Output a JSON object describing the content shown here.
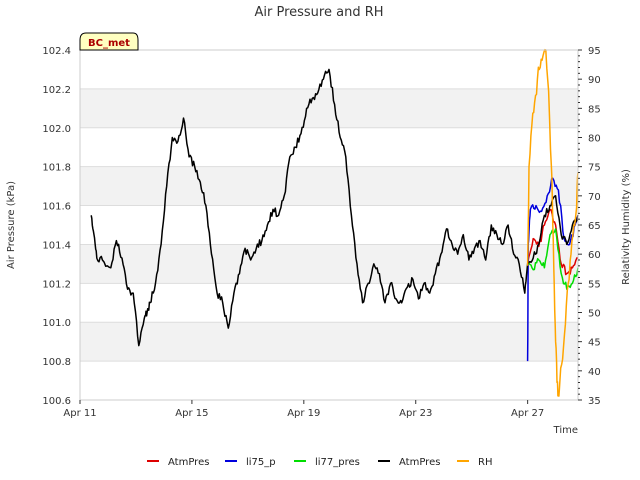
{
  "chart_data": {
    "type": "line",
    "title": "Air Pressure and RH",
    "xlabel": "Time",
    "ylabel": "Air Pressure (kPa)",
    "y2label": "Relativity Humidity (%)",
    "badge": "BC_met",
    "x_ticks": [
      {
        "day": 11,
        "label": "Apr 11"
      },
      {
        "day": 15,
        "label": "Apr 15"
      },
      {
        "day": 19,
        "label": "Apr 19"
      },
      {
        "day": 23,
        "label": "Apr 23"
      },
      {
        "day": 27,
        "label": "Apr 27"
      }
    ],
    "xlim": [
      11,
      28.8
    ],
    "ylim": [
      100.6,
      102.4
    ],
    "y_ticks": [
      {
        "v": 100.6,
        "label": "100.6"
      },
      {
        "v": 100.8,
        "label": "100.8"
      },
      {
        "v": 101.0,
        "label": "101.0"
      },
      {
        "v": 101.2,
        "label": "101.2"
      },
      {
        "v": 101.4,
        "label": "101.4"
      },
      {
        "v": 101.6,
        "label": "101.6"
      },
      {
        "v": 101.8,
        "label": "101.8"
      },
      {
        "v": 102.0,
        "label": "102.0"
      },
      {
        "v": 102.2,
        "label": "102.2"
      },
      {
        "v": 102.4,
        "label": "102.4"
      }
    ],
    "y2lim": [
      35,
      95
    ],
    "y2_ticks": [
      {
        "v": 35,
        "label": "35"
      },
      {
        "v": 40,
        "label": "40"
      },
      {
        "v": 45,
        "label": "45"
      },
      {
        "v": 50,
        "label": "50"
      },
      {
        "v": 55,
        "label": "55"
      },
      {
        "v": 60,
        "label": "60"
      },
      {
        "v": 65,
        "label": "65"
      },
      {
        "v": 70,
        "label": "70"
      },
      {
        "v": 75,
        "label": "75"
      },
      {
        "v": 80,
        "label": "80"
      },
      {
        "v": 85,
        "label": "85"
      },
      {
        "v": 90,
        "label": "90"
      },
      {
        "v": 95,
        "label": "95"
      }
    ],
    "series": [
      {
        "name": "AtmPres",
        "color": "#dd0000",
        "axis": "left",
        "x": [
          27.0,
          27.2,
          27.4,
          27.6,
          27.8,
          28.0,
          28.2,
          28.4,
          28.6,
          28.8
        ],
        "y": [
          101.3,
          101.43,
          101.39,
          101.5,
          101.58,
          101.5,
          101.3,
          101.25,
          101.28,
          101.33
        ]
      },
      {
        "name": "li75_p",
        "color": "#0000dd",
        "axis": "left",
        "x": [
          27.0,
          27.02,
          27.1,
          27.3,
          27.5,
          27.7,
          27.9,
          28.1,
          28.3,
          28.5,
          28.7,
          28.8
        ],
        "y": [
          100.8,
          101.4,
          101.58,
          101.6,
          101.57,
          101.65,
          101.74,
          101.68,
          101.43,
          101.4,
          101.5,
          101.55
        ]
      },
      {
        "name": "li77_pres",
        "color": "#00dd00",
        "axis": "left",
        "x": [
          27.0,
          27.2,
          27.4,
          27.6,
          27.8,
          28.0,
          28.2,
          28.4,
          28.6,
          28.8
        ],
        "y": [
          101.3,
          101.27,
          101.32,
          101.28,
          101.45,
          101.48,
          101.25,
          101.17,
          101.2,
          101.28
        ]
      },
      {
        "name": "AtmPres",
        "color": "#000000",
        "axis": "left",
        "x": [
          11.4,
          11.5,
          11.6,
          11.8,
          12.1,
          12.3,
          12.5,
          12.7,
          12.9,
          13.1,
          13.3,
          13.4,
          13.5,
          13.7,
          13.9,
          14.1,
          14.3,
          14.5,
          14.7,
          14.9,
          15.1,
          15.3,
          15.5,
          15.7,
          15.9,
          16.1,
          16.3,
          16.5,
          16.7,
          16.9,
          17.1,
          17.3,
          17.5,
          17.7,
          17.9,
          18.1,
          18.3,
          18.5,
          18.7,
          18.9,
          19.1,
          19.3,
          19.5,
          19.7,
          19.9,
          20.1,
          20.3,
          20.5,
          20.7,
          20.9,
          21.1,
          21.3,
          21.5,
          21.7,
          21.9,
          22.1,
          22.3,
          22.5,
          22.7,
          22.9,
          23.1,
          23.3,
          23.5,
          23.7,
          23.9,
          24.1,
          24.3,
          24.5,
          24.7,
          24.9,
          25.1,
          25.3,
          25.5,
          25.7,
          25.9,
          26.1,
          26.3,
          26.5,
          26.7,
          26.9,
          27.0,
          27.2,
          27.4,
          27.6,
          27.8,
          28.0,
          28.2,
          28.4,
          28.6,
          28.8
        ],
        "y": [
          101.55,
          101.45,
          101.33,
          101.32,
          101.28,
          101.42,
          101.33,
          101.17,
          101.15,
          100.88,
          101.02,
          101.05,
          101.1,
          101.2,
          101.4,
          101.7,
          101.95,
          101.93,
          102.05,
          101.85,
          101.8,
          101.72,
          101.6,
          101.35,
          101.15,
          101.1,
          100.97,
          101.15,
          101.25,
          101.38,
          101.32,
          101.38,
          101.42,
          101.5,
          101.58,
          101.55,
          101.65,
          101.85,
          101.9,
          101.97,
          102.1,
          102.15,
          102.18,
          102.25,
          102.3,
          102.12,
          101.95,
          101.85,
          101.55,
          101.3,
          101.1,
          101.2,
          101.3,
          101.25,
          101.1,
          101.2,
          101.12,
          101.1,
          101.18,
          101.22,
          101.12,
          101.2,
          101.15,
          101.25,
          101.35,
          101.48,
          101.4,
          101.35,
          101.45,
          101.32,
          101.38,
          101.42,
          101.32,
          101.5,
          101.45,
          101.4,
          101.5,
          101.35,
          101.3,
          101.15,
          101.3,
          101.33,
          101.4,
          101.55,
          101.6,
          101.65,
          101.45,
          101.4,
          101.5,
          101.55
        ]
      },
      {
        "name": "RH",
        "color": "#ffa500",
        "axis": "right",
        "x": [
          27.0,
          27.05,
          27.15,
          27.25,
          27.35,
          27.45,
          27.55,
          27.65,
          27.75,
          27.85,
          27.9,
          27.95,
          28.0,
          28.05,
          28.1,
          28.15,
          28.25,
          28.35,
          28.45,
          28.55,
          28.65,
          28.75,
          28.8
        ],
        "y": [
          58,
          75,
          82,
          86,
          90,
          92,
          94,
          95,
          88,
          75,
          65,
          55,
          45,
          38,
          36,
          38,
          42,
          48,
          55,
          60,
          65,
          68,
          74
        ]
      }
    ],
    "legend": [
      {
        "label": "AtmPres",
        "color": "#dd0000"
      },
      {
        "label": "li75_p",
        "color": "#0000dd"
      },
      {
        "label": "li77_pres",
        "color": "#00dd00"
      },
      {
        "label": "AtmPres",
        "color": "#000000"
      },
      {
        "label": "RH",
        "color": "#ffa500"
      }
    ],
    "legend_position": "bottom",
    "grid": "horizontal-bands"
  }
}
